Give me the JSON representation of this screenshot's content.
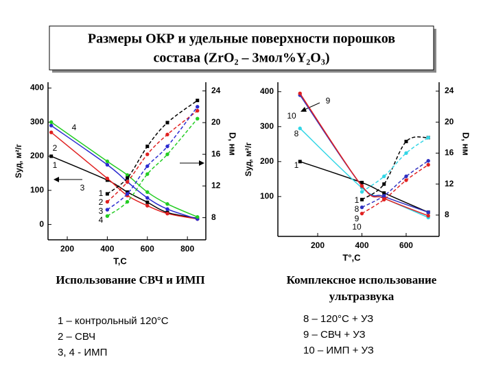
{
  "slide_title": [
    "Размеры ОКР и удельные поверхности порошков",
    "состава (ZrO₂ – 3мол%Y₂O₃)"
  ],
  "captions": [
    [
      "Использование СВЧ и ИМП"
    ],
    [
      "Комплексное использование",
      "ультразвука"
    ]
  ],
  "legends": [
    [
      "1 – контрольный 120°С",
      "2 – СВЧ",
      "3, 4 - ИМП"
    ],
    [
      "8 – 120°С + УЗ",
      "9 – СВЧ + УЗ",
      "10 – ИМП + УЗ"
    ]
  ],
  "chart_data": [
    {
      "type": "line",
      "xlabel": "T,C",
      "ylabel": "Sуд, м²/г",
      "y2label": "D, нм",
      "xlim": [
        104,
        892
      ],
      "xticks": [
        200,
        400,
        600,
        800
      ],
      "ylim": [
        -45,
        417
      ],
      "yticks": [
        0,
        100,
        200,
        300,
        400
      ],
      "y2lim": [
        5.2,
        25.1
      ],
      "y2ticks": [
        8,
        12,
        16,
        20,
        24
      ],
      "series": [
        {
          "name": "1",
          "color": "#000000",
          "x": [
            120,
            400,
            500,
            600,
            700,
            850
          ],
          "values": [
            200,
            130,
            95,
            65,
            35,
            18
          ]
        },
        {
          "name": "2",
          "color": "#e02020",
          "x": [
            120,
            400,
            500,
            600,
            700,
            850
          ],
          "values": [
            270,
            135,
            85,
            55,
            32,
            16
          ]
        },
        {
          "name": "3",
          "color": "#2a2ad0",
          "x": [
            120,
            400,
            500,
            600,
            700,
            850
          ],
          "values": [
            290,
            175,
            125,
            78,
            45,
            16
          ]
        },
        {
          "name": "4",
          "color": "#22cc22",
          "x": [
            120,
            400,
            500,
            600,
            700,
            850
          ],
          "values": [
            300,
            185,
            145,
            95,
            60,
            22
          ]
        },
        {
          "name": "1",
          "color": "#000000",
          "axis": "y2",
          "dashed": true,
          "x": [
            400,
            500,
            600,
            700,
            850
          ],
          "values": [
            11,
            13,
            17,
            20,
            22.8
          ]
        },
        {
          "name": "2",
          "color": "#e02020",
          "axis": "y2",
          "dashed": true,
          "x": [
            400,
            500,
            600,
            700,
            850
          ],
          "values": [
            10,
            12.5,
            16,
            18.5,
            21.5
          ]
        },
        {
          "name": "3",
          "color": "#2a2ad0",
          "axis": "y2",
          "dashed": true,
          "x": [
            400,
            500,
            600,
            700,
            850
          ],
          "values": [
            9,
            11,
            14.5,
            17,
            22
          ]
        },
        {
          "name": "4",
          "color": "#22cc22",
          "axis": "y2",
          "dashed": true,
          "x": [
            400,
            500,
            600,
            700,
            850
          ],
          "values": [
            8.2,
            10,
            13.5,
            16,
            20.5
          ]
        }
      ]
    },
    {
      "type": "line",
      "xlabel": "T°,C",
      "ylabel": "Sуд, м²/г",
      "y2label": "D, нм",
      "xlim": [
        20,
        749
      ],
      "xticks": [
        200,
        400,
        600
      ],
      "ylim": [
        -14,
        427
      ],
      "yticks": [
        100,
        200,
        300,
        400
      ],
      "y2lim": [
        5.25,
        25.15
      ],
      "y2ticks": [
        8,
        12,
        16,
        20,
        24
      ],
      "series": [
        {
          "name": "1",
          "color": "#000000",
          "x": [
            120,
            400,
            500,
            700
          ],
          "values": [
            200,
            140,
            110,
            55
          ]
        },
        {
          "name": "8",
          "color": "#33d6e6",
          "x": [
            120,
            400,
            500,
            700
          ],
          "values": [
            295,
            125,
            95,
            40
          ]
        },
        {
          "name": "9",
          "color": "#3030c0",
          "x": [
            120,
            400,
            500,
            700
          ],
          "values": [
            390,
            130,
            100,
            55
          ]
        },
        {
          "name": "10",
          "color": "#e02020",
          "x": [
            120,
            400,
            500,
            700
          ],
          "values": [
            395,
            130,
            95,
            45
          ]
        },
        {
          "name": "1",
          "color": "#000000",
          "axis": "y2",
          "dashed": true,
          "x": [
            400,
            500,
            600,
            700
          ],
          "values": [
            10,
            12,
            17.5,
            18
          ]
        },
        {
          "name": "8",
          "color": "#33d6e6",
          "axis": "y2",
          "dashed": true,
          "x": [
            400,
            500,
            600,
            700
          ],
          "values": [
            11,
            13,
            16,
            18
          ]
        },
        {
          "name": "9",
          "color": "#3030c0",
          "axis": "y2",
          "dashed": true,
          "x": [
            400,
            500,
            600,
            700
          ],
          "values": [
            9,
            10.5,
            13,
            15
          ]
        },
        {
          "name": "10",
          "color": "#e02020",
          "axis": "y2",
          "dashed": true,
          "x": [
            400,
            500,
            600,
            700
          ],
          "values": [
            8.2,
            10,
            12.5,
            14.5
          ]
        }
      ]
    }
  ]
}
